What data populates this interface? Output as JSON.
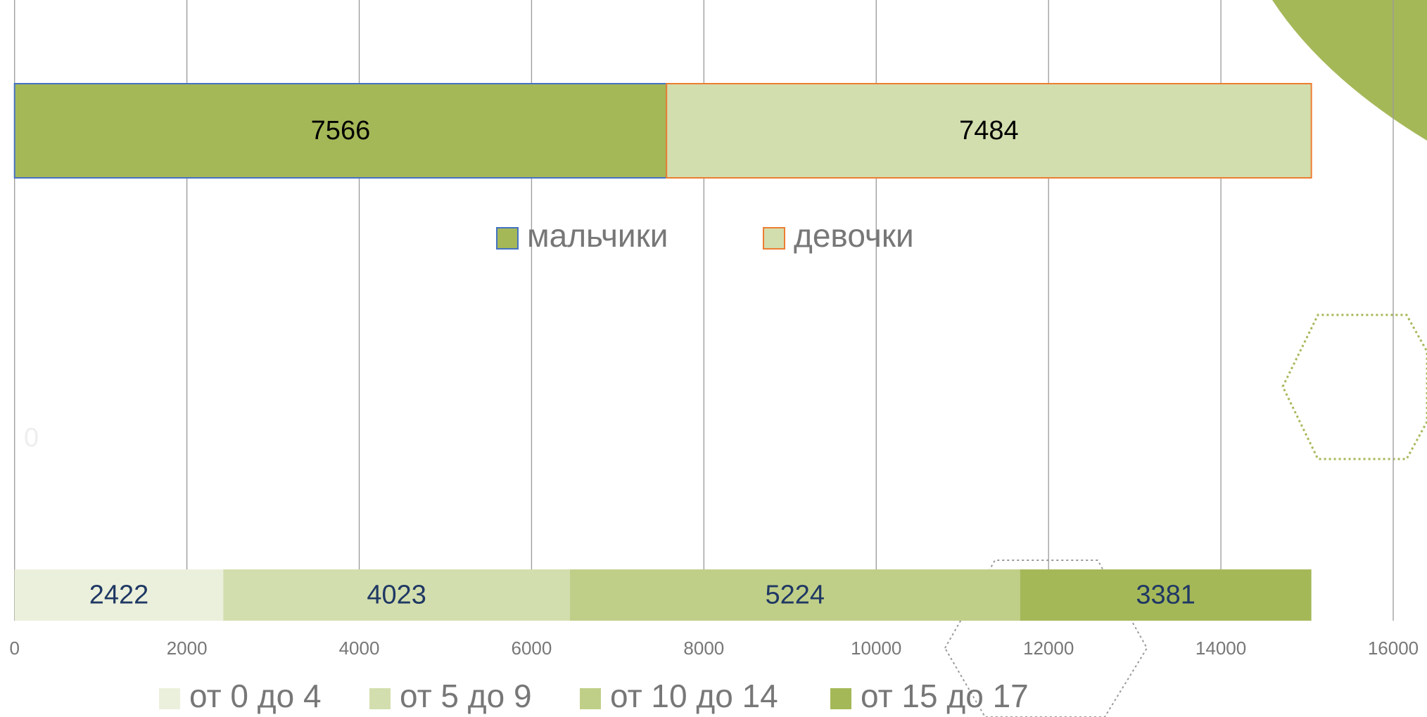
{
  "chart_data": [
    {
      "type": "bar",
      "orientation": "horizontal",
      "stacked": true,
      "series": [
        {
          "name": "мальчики",
          "color": "#a5b858",
          "edgecolor": "#4472c4",
          "values": [
            7566
          ]
        },
        {
          "name": "девочки",
          "color": "#d3deae",
          "edgecolor": "#ed7d31",
          "values": [
            7484
          ]
        }
      ],
      "annotations": [
        "0"
      ]
    },
    {
      "type": "bar",
      "orientation": "horizontal",
      "stacked": true,
      "series": [
        {
          "name": "от 0 до 4",
          "color": "#ebf0dc",
          "values": [
            2422
          ]
        },
        {
          "name": "от 5 до 9",
          "color": "#d3deae",
          "values": [
            4023
          ]
        },
        {
          "name": "от 10 до 14",
          "color": "#c0cf88",
          "values": [
            5224
          ]
        },
        {
          "name": "от 15 до 17",
          "color": "#a5b858",
          "values": [
            3381
          ]
        }
      ],
      "xlim": [
        0,
        16000
      ],
      "xticks": [
        0,
        2000,
        4000,
        6000,
        8000,
        10000,
        12000,
        14000,
        16000
      ],
      "grid": true
    }
  ]
}
